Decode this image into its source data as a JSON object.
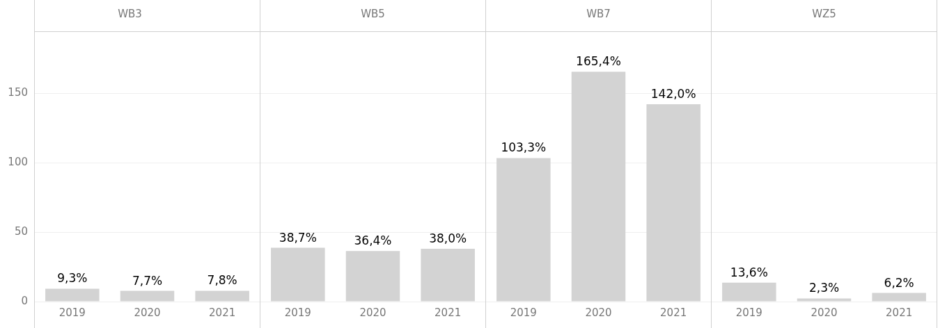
{
  "chart_data": [
    {
      "type": "bar",
      "title": "WB3",
      "categories": [
        "2019",
        "2020",
        "2021"
      ],
      "values": [
        9.3,
        7.7,
        7.8
      ],
      "value_labels": [
        "9,3%",
        "7,7%",
        "7,8%"
      ],
      "color": "#d3d3d3",
      "ylim": [
        0,
        195
      ],
      "yticks": [
        0,
        50,
        100,
        150
      ],
      "grid": "y",
      "legend": false,
      "tick_labels": "xy"
    },
    {
      "type": "bar",
      "title": "WB5",
      "categories": [
        "2019",
        "2020",
        "2021"
      ],
      "values": [
        38.7,
        36.4,
        38.0
      ],
      "value_labels": [
        "38,7%",
        "36,4%",
        "38,0%"
      ],
      "color": "#d3d3d3",
      "ylim": [
        0,
        195
      ],
      "yticks": [
        0,
        50,
        100,
        150
      ],
      "grid": "y",
      "legend": false,
      "tick_labels": "x"
    },
    {
      "type": "bar",
      "title": "WB7",
      "categories": [
        "2019",
        "2020",
        "2021"
      ],
      "values": [
        103.3,
        165.4,
        142.0
      ],
      "value_labels": [
        "103,3%",
        "165,4%",
        "142,0%"
      ],
      "color": "#d3d3d3",
      "ylim": [
        0,
        195
      ],
      "yticks": [
        0,
        50,
        100,
        150
      ],
      "grid": "y",
      "legend": false,
      "tick_labels": "x"
    },
    {
      "type": "bar",
      "title": "WZ5",
      "categories": [
        "2019",
        "2020",
        "2021"
      ],
      "values": [
        13.6,
        2.3,
        6.2
      ],
      "value_labels": [
        "13,6%",
        "2,3%",
        "6,2%"
      ],
      "color": "#d3d3d3",
      "ylim": [
        0,
        195
      ],
      "yticks": [
        0,
        50,
        100,
        150
      ],
      "grid": "y",
      "legend": false,
      "tick_labels": "x"
    }
  ]
}
